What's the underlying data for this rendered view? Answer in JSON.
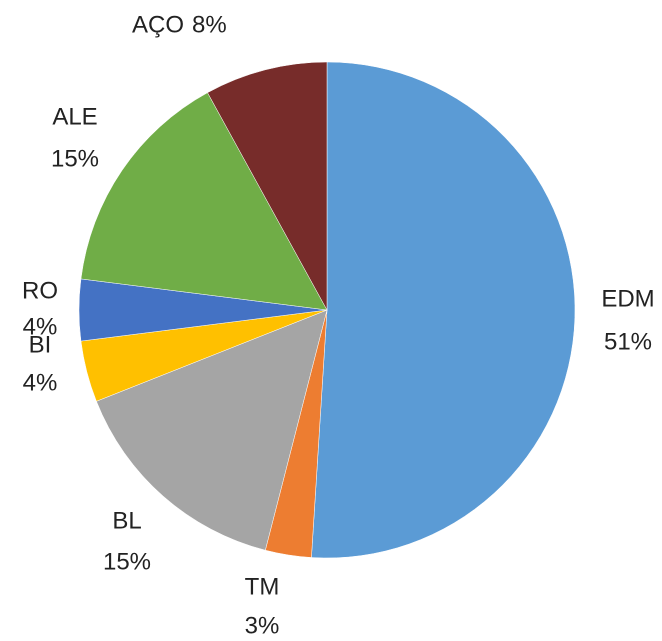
{
  "chart_data": {
    "type": "pie",
    "categories": [
      "EDM",
      "TM",
      "BL",
      "BI",
      "RO",
      "ALE",
      "AÇO"
    ],
    "values": [
      51,
      3,
      15,
      4,
      4,
      15,
      8
    ],
    "value_labels": [
      "51%",
      "3%",
      "15%",
      "4%",
      "4%",
      "15%",
      "8%"
    ],
    "colors": [
      "#5b9bd5",
      "#ed7d31",
      "#a5a5a5",
      "#ffc000",
      "#4472c4",
      "#70ad47",
      "#772c2a"
    ]
  }
}
